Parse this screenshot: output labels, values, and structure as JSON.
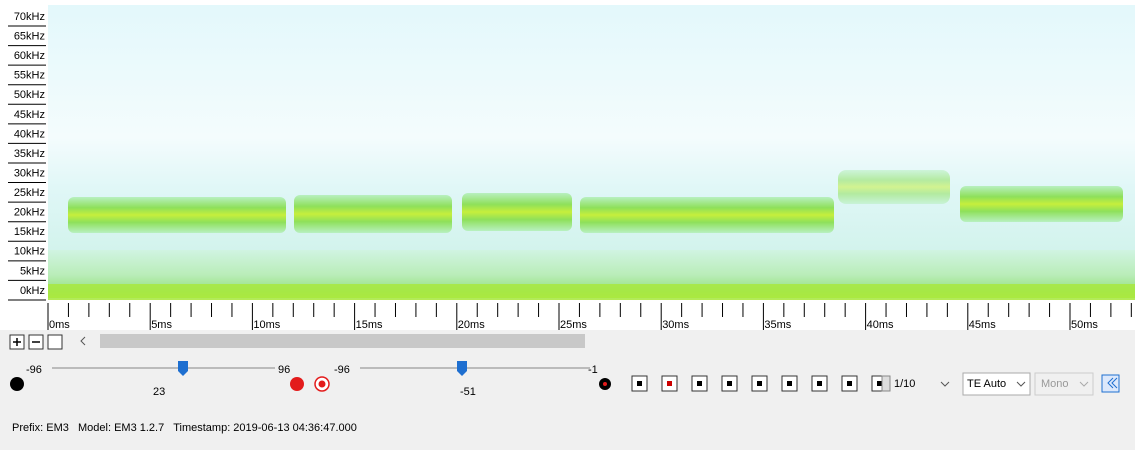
{
  "spectrogram": {
    "freq_labels": [
      "70kHz",
      "65kHz",
      "60kHz",
      "55kHz",
      "50kHz",
      "45kHz",
      "40kHz",
      "35kHz",
      "30kHz",
      "25kHz",
      "20kHz",
      "15kHz",
      "10kHz",
      "5kHz",
      "0kHz"
    ],
    "time_labels": [
      "0ms",
      "5ms",
      "10ms",
      "15ms",
      "20ms",
      "25ms",
      "30ms",
      "35ms",
      "40ms",
      "45ms",
      "50ms"
    ]
  },
  "controls": {
    "gain_slider": {
      "min": "-96",
      "value": "23",
      "max": "96"
    },
    "threshold_slider": {
      "min": "-96",
      "value": "-51",
      "max": "-1"
    },
    "dropdowns": [
      "1/10",
      "TE Auto",
      "Mono"
    ]
  },
  "status": "Prefix: EM3   Model: EM3 1.2.7   Timestamp: 2019-06-13 04:36:47.000"
}
